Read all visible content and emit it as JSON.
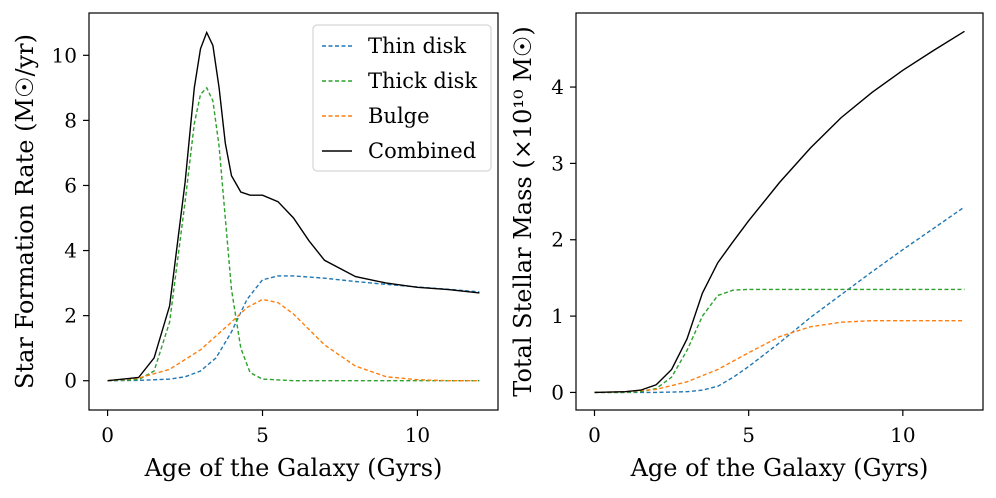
{
  "chart_data": [
    {
      "type": "line",
      "xlabel": "Age of the Galaxy (Gyrs)",
      "ylabel": "Star Formation Rate (M☉/yr)",
      "xlim": [
        -0.6,
        12.6
      ],
      "ylim": [
        -0.9,
        11.3
      ],
      "xticks": [
        0,
        5,
        10
      ],
      "yticks": [
        0,
        2,
        4,
        6,
        8,
        10
      ],
      "legend_position": "upper right",
      "legend": [
        "Thin disk",
        "Thick disk",
        "Bulge",
        "Combined"
      ],
      "series": [
        {
          "name": "Thin disk",
          "color": "#1f77b4",
          "dash": "dashed",
          "x": [
            0,
            1,
            2,
            2.5,
            3,
            3.5,
            4,
            4.5,
            5,
            5.5,
            6,
            7,
            8,
            9,
            10,
            11,
            12
          ],
          "values": [
            0,
            0.01,
            0.05,
            0.12,
            0.3,
            0.7,
            1.5,
            2.5,
            3.1,
            3.22,
            3.22,
            3.15,
            3.05,
            2.96,
            2.88,
            2.81,
            2.73
          ]
        },
        {
          "name": "Thick disk",
          "color": "#2ca02c",
          "dash": "dashed",
          "x": [
            0,
            1,
            1.5,
            2,
            2.5,
            2.8,
            3.0,
            3.2,
            3.4,
            3.6,
            3.8,
            4,
            4.3,
            4.6,
            5,
            6,
            8,
            10,
            12
          ],
          "values": [
            0,
            0.03,
            0.3,
            1.8,
            5.5,
            7.9,
            8.8,
            9.0,
            8.6,
            7.2,
            5.0,
            2.8,
            1.0,
            0.25,
            0.05,
            0,
            0,
            0,
            0
          ]
        },
        {
          "name": "Bulge",
          "color": "#ff7f0e",
          "dash": "dashed",
          "x": [
            0,
            1,
            2,
            3,
            4,
            4.5,
            5,
            5.5,
            6,
            7,
            8,
            9,
            10,
            11,
            12
          ],
          "values": [
            0,
            0.08,
            0.35,
            0.95,
            1.8,
            2.25,
            2.5,
            2.4,
            2.05,
            1.1,
            0.45,
            0.12,
            0.03,
            0,
            0
          ]
        },
        {
          "name": "Combined",
          "color": "#000000",
          "dash": "solid",
          "x": [
            0,
            1,
            1.5,
            2,
            2.5,
            2.8,
            3.0,
            3.2,
            3.4,
            3.6,
            3.8,
            4,
            4.3,
            4.6,
            5,
            5.5,
            6,
            6.5,
            7,
            8,
            9,
            10,
            11,
            12
          ],
          "values": [
            0,
            0.1,
            0.7,
            2.3,
            6.1,
            9.0,
            10.2,
            10.7,
            10.3,
            9.0,
            7.3,
            6.3,
            5.8,
            5.7,
            5.7,
            5.5,
            5.0,
            4.3,
            3.7,
            3.2,
            3.0,
            2.87,
            2.8,
            2.7
          ]
        }
      ]
    },
    {
      "type": "line",
      "xlabel": "Age of the Galaxy (Gyrs)",
      "ylabel": "Total Stellar Mass (×10¹⁰ M☉)",
      "xlim": [
        -0.6,
        12.6
      ],
      "ylim": [
        -0.23,
        4.97
      ],
      "xticks": [
        0,
        5,
        10
      ],
      "yticks": [
        0,
        1,
        2,
        3,
        4
      ],
      "series": [
        {
          "name": "Thin disk",
          "color": "#1f77b4",
          "dash": "dashed",
          "x": [
            0,
            2,
            3,
            3.5,
            4,
            4.5,
            5,
            6,
            7,
            8,
            9,
            10,
            11,
            12
          ],
          "values": [
            0,
            0,
            0.01,
            0.03,
            0.08,
            0.2,
            0.34,
            0.65,
            0.98,
            1.28,
            1.58,
            1.87,
            2.15,
            2.43
          ]
        },
        {
          "name": "Thick disk",
          "color": "#2ca02c",
          "dash": "dashed",
          "x": [
            0,
            1,
            1.5,
            2,
            2.5,
            3,
            3.5,
            4,
            4.5,
            5,
            6,
            8,
            12
          ],
          "values": [
            0,
            0,
            0.01,
            0.05,
            0.2,
            0.55,
            1.0,
            1.27,
            1.34,
            1.35,
            1.35,
            1.35,
            1.35
          ]
        },
        {
          "name": "Bulge",
          "color": "#ff7f0e",
          "dash": "dashed",
          "x": [
            0,
            1,
            2,
            3,
            4,
            5,
            6,
            7,
            8,
            9,
            10,
            12
          ],
          "values": [
            0,
            0.01,
            0.04,
            0.14,
            0.3,
            0.52,
            0.73,
            0.86,
            0.92,
            0.94,
            0.94,
            0.94
          ]
        },
        {
          "name": "Combined",
          "color": "#000000",
          "dash": "solid",
          "x": [
            0,
            1,
            1.5,
            2,
            2.5,
            3,
            3.5,
            4,
            4.5,
            5,
            6,
            7,
            8,
            9,
            10,
            11,
            12
          ],
          "values": [
            0,
            0.01,
            0.03,
            0.1,
            0.3,
            0.7,
            1.3,
            1.7,
            1.98,
            2.25,
            2.75,
            3.2,
            3.6,
            3.93,
            4.22,
            4.48,
            4.73
          ]
        }
      ]
    }
  ]
}
